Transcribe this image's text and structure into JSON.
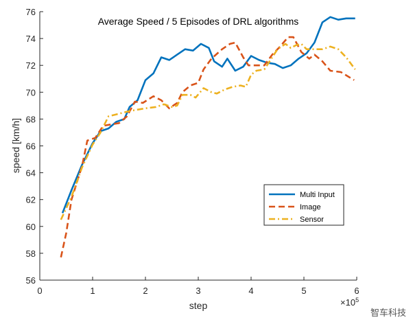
{
  "chart_data": {
    "type": "line",
    "title": "Average Speed / 5 Episodes of DRL algorithms",
    "xlabel": "step",
    "ylabel": "speed [km/h]",
    "x_exponent": "×10",
    "x_exponent_power": "5",
    "xlim": [
      0,
      6
    ],
    "ylim": [
      56,
      76
    ],
    "xticks": [
      "0",
      "1",
      "2",
      "3",
      "4",
      "5",
      "6"
    ],
    "yticks": [
      "56",
      "58",
      "60",
      "62",
      "64",
      "66",
      "68",
      "70",
      "72",
      "74",
      "76"
    ],
    "grid": false,
    "legend_position": "lower-right",
    "series": [
      {
        "name": "Multi Input",
        "color": "#0072BD",
        "style": "solid",
        "x": [
          0.43,
          0.6,
          0.8,
          1.0,
          1.15,
          1.3,
          1.45,
          1.6,
          1.7,
          1.85,
          2.0,
          2.15,
          2.3,
          2.45,
          2.6,
          2.75,
          2.9,
          3.05,
          3.2,
          3.3,
          3.45,
          3.55,
          3.7,
          3.85,
          4.0,
          4.15,
          4.3,
          4.45,
          4.6,
          4.75,
          4.9,
          5.05,
          5.2,
          5.35,
          5.5,
          5.65,
          5.8,
          5.97
        ],
        "y": [
          61.0,
          62.7,
          64.6,
          66.2,
          67.1,
          67.3,
          67.8,
          68.0,
          68.9,
          69.4,
          70.9,
          71.4,
          72.6,
          72.4,
          72.8,
          73.2,
          73.1,
          73.6,
          73.3,
          72.3,
          71.9,
          72.5,
          71.6,
          71.9,
          72.7,
          72.4,
          72.2,
          72.1,
          71.8,
          72.0,
          72.5,
          72.9,
          73.7,
          75.2,
          75.6,
          75.4,
          75.5,
          75.5
        ]
      },
      {
        "name": "Image",
        "color": "#D95319",
        "style": "dashed",
        "x": [
          0.4,
          0.5,
          0.6,
          0.8,
          0.9,
          1.05,
          1.2,
          1.35,
          1.5,
          1.65,
          1.8,
          1.95,
          2.15,
          2.3,
          2.45,
          2.6,
          2.7,
          2.85,
          3.0,
          3.1,
          3.25,
          3.45,
          3.6,
          3.7,
          3.85,
          3.95,
          4.1,
          4.25,
          4.4,
          4.55,
          4.7,
          4.8,
          4.95,
          5.1,
          5.2,
          5.35,
          5.5,
          5.7,
          5.95
        ],
        "y": [
          57.7,
          59.5,
          62.0,
          64.5,
          66.4,
          66.6,
          67.5,
          67.6,
          67.7,
          68.2,
          69.3,
          69.2,
          69.7,
          69.4,
          68.8,
          69.2,
          70.0,
          70.5,
          70.7,
          71.7,
          72.5,
          73.2,
          73.6,
          73.7,
          72.6,
          72.0,
          72.0,
          72.0,
          72.8,
          73.4,
          74.1,
          74.1,
          73.0,
          72.5,
          72.8,
          72.3,
          71.6,
          71.5,
          70.9
        ]
      },
      {
        "name": "Sensor",
        "color": "#EDB120",
        "style": "dashdot",
        "x": [
          0.4,
          0.6,
          0.8,
          1.0,
          1.15,
          1.3,
          1.5,
          1.7,
          1.85,
          2.0,
          2.2,
          2.35,
          2.5,
          2.6,
          2.7,
          2.85,
          2.95,
          3.1,
          3.25,
          3.35,
          3.5,
          3.65,
          3.8,
          3.9,
          4.0,
          4.1,
          4.25,
          4.4,
          4.5,
          4.65,
          4.75,
          4.85,
          4.95,
          5.05,
          5.2,
          5.35,
          5.5,
          5.65,
          5.8,
          5.97
        ],
        "y": [
          60.5,
          62.2,
          64.4,
          66.1,
          67.0,
          68.2,
          68.4,
          68.6,
          68.7,
          68.8,
          68.9,
          69.1,
          68.9,
          69.0,
          69.8,
          69.8,
          69.6,
          70.3,
          70.0,
          69.9,
          70.2,
          70.4,
          70.5,
          70.4,
          71.3,
          71.6,
          71.7,
          72.6,
          73.2,
          73.6,
          73.3,
          73.5,
          73.6,
          73.2,
          73.2,
          73.2,
          73.4,
          73.2,
          72.6,
          71.7
        ]
      }
    ]
  },
  "watermark": "智车科技"
}
